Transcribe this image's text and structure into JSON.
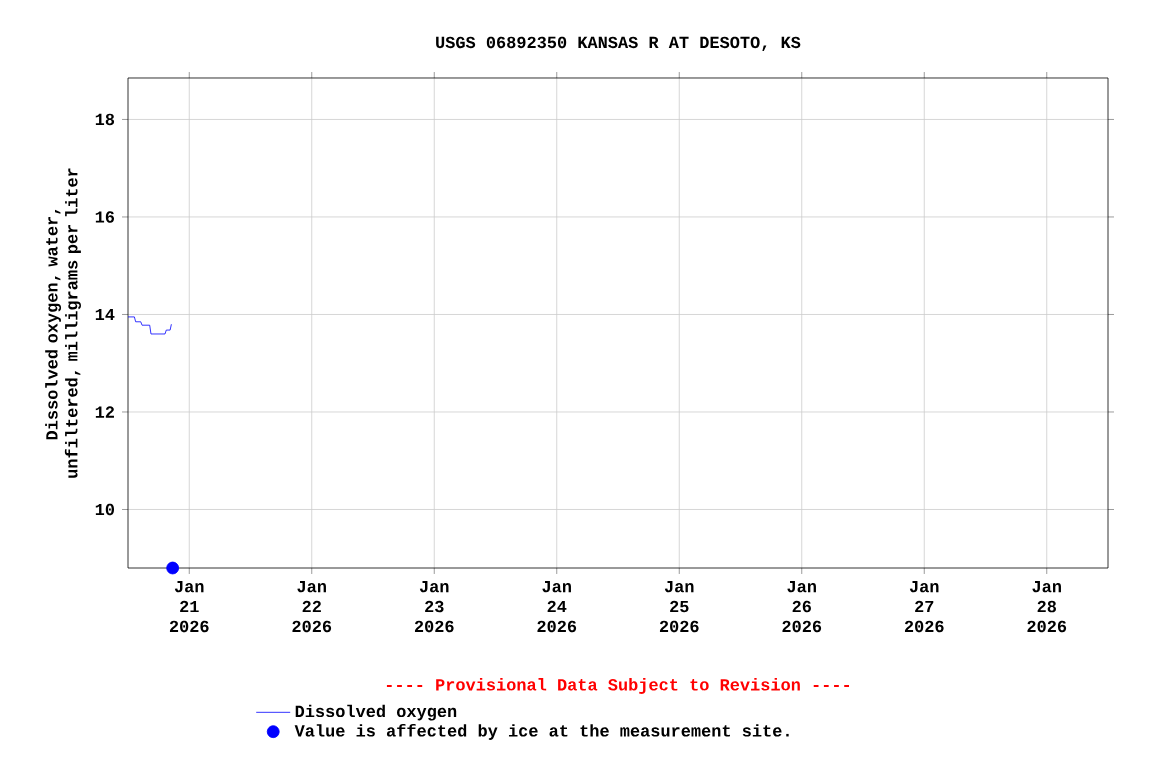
{
  "chart_data": {
    "type": "line",
    "title": "USGS 06892350 KANSAS R AT DESOTO, KS",
    "ylabel": "Dissolved oxygen, water, unfiltered, milligrams per liter",
    "annotations": [
      "---- Provisional Data Subject to Revision ----"
    ],
    "xlim": [
      "2026-01-20T12:00",
      "2026-01-28T12:00"
    ],
    "xticks": [
      {
        "value": "2026-01-21",
        "label": "Jan 21 2026"
      },
      {
        "value": "2026-01-22",
        "label": "Jan 22 2026"
      },
      {
        "value": "2026-01-23",
        "label": "Jan 23 2026"
      },
      {
        "value": "2026-01-24",
        "label": "Jan 24 2026"
      },
      {
        "value": "2026-01-25",
        "label": "Jan 25 2026"
      },
      {
        "value": "2026-01-26",
        "label": "Jan 26 2026"
      },
      {
        "value": "2026-01-27",
        "label": "Jan 27 2026"
      },
      {
        "value": "2026-01-28",
        "label": "Jan 28 2026"
      }
    ],
    "ylim": [
      8.8,
      18.85
    ],
    "yticks": [
      10,
      12,
      14,
      16,
      18
    ],
    "grid": true,
    "legend": "bottom",
    "series": [
      {
        "name": "Dissolved oxygen",
        "color": "#0000ff",
        "x": [
          "2026-01-20T12:00",
          "2026-01-20T13:15",
          "2026-01-20T13:30",
          "2026-01-20T14:30",
          "2026-01-20T14:45",
          "2026-01-20T16:15",
          "2026-01-20T16:30",
          "2026-01-20T19:15",
          "2026-01-20T19:30",
          "2026-01-20T20:15",
          "2026-01-20T20:30"
        ],
        "values": [
          13.95,
          13.95,
          13.85,
          13.85,
          13.78,
          13.78,
          13.6,
          13.6,
          13.68,
          13.68,
          13.8
        ]
      },
      {
        "name": "Value is affected by ice at the measurement site.",
        "type": "scatter",
        "marker": "circle",
        "color": "#0000ff",
        "x": [
          "2026-01-20T20:45"
        ],
        "values": [
          8.8
        ]
      }
    ]
  }
}
